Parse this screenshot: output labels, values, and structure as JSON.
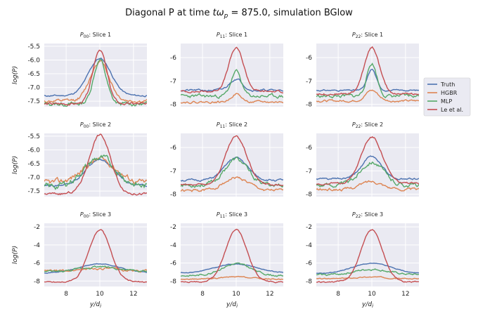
{
  "title": {
    "prefix": "Diagonal P at time ",
    "t": "t",
    "omega": "ω",
    "sub": "p",
    "value": " = 875.0, simulation BGlow"
  },
  "chart_data": {
    "type": "line",
    "xlabel": "y/d_i",
    "ylabel": "log(P)",
    "xlim": [
      6.7,
      12.8
    ],
    "xticks": [
      8,
      10,
      12
    ],
    "legend": {
      "position": "right",
      "entries": [
        {
          "name": "Truth",
          "color": "#4c72b0"
        },
        {
          "name": "HGBR",
          "color": "#dd8452"
        },
        {
          "name": "MLP",
          "color": "#55a868"
        },
        {
          "name": "Le et al.",
          "color": "#c44e52"
        }
      ]
    },
    "panels": [
      {
        "row": 0,
        "col": 0,
        "comp": "P",
        "sub": "00",
        "slice": "Slice 1",
        "ylim": [
          -7.7,
          -5.4
        ],
        "yticks": [
          "-5.5",
          "-6.0",
          "-6.5",
          "-7.0",
          "-7.5"
        ],
        "series": {
          "Truth": {
            "base": -7.3,
            "peak": -5.95,
            "width": 0.9,
            "noise": 0.02,
            "seed": 11
          },
          "HGBR": {
            "base": -7.5,
            "peak": -6.05,
            "width": 0.75,
            "noise": 0.04,
            "seed": 12
          },
          "MLP": {
            "base": -7.6,
            "peak": -6.0,
            "width": 0.5,
            "noise": 0.05,
            "seed": 13
          },
          "Le et al.": {
            "base": -7.6,
            "peak": -5.6,
            "width": 0.55,
            "noise": 0.03,
            "seed": 14
          }
        }
      },
      {
        "row": 0,
        "col": 1,
        "comp": "P",
        "sub": "11",
        "slice": "Slice 1",
        "ylim": [
          -8.1,
          -5.4
        ],
        "yticks": [
          "-6",
          "-7",
          "-8"
        ],
        "series": {
          "Truth": {
            "base": -7.4,
            "peak": -6.9,
            "width": 0.5,
            "noise": 0.03,
            "seed": 21
          },
          "HGBR": {
            "base": -7.9,
            "peak": -7.55,
            "width": 0.4,
            "noise": 0.03,
            "seed": 22
          },
          "MLP": {
            "base": -7.65,
            "peak": -6.6,
            "width": 0.4,
            "noise": 0.05,
            "seed": 23
          },
          "Le et al.": {
            "base": -7.45,
            "peak": -5.6,
            "width": 0.6,
            "noise": 0.03,
            "seed": 24
          }
        }
      },
      {
        "row": 0,
        "col": 2,
        "comp": "P",
        "sub": "22",
        "slice": "Slice 1",
        "ylim": [
          -8.1,
          -5.4
        ],
        "yticks": [
          "-6",
          "-7",
          "-8"
        ],
        "series": {
          "Truth": {
            "base": -7.4,
            "peak": -6.5,
            "width": 0.35,
            "noise": 0.02,
            "seed": 31
          },
          "HGBR": {
            "base": -7.85,
            "peak": -7.4,
            "width": 0.5,
            "noise": 0.03,
            "seed": 32
          },
          "MLP": {
            "base": -7.65,
            "peak": -6.25,
            "width": 0.4,
            "noise": 0.05,
            "seed": 33
          },
          "Le et al.": {
            "base": -7.55,
            "peak": -5.55,
            "width": 0.6,
            "noise": 0.03,
            "seed": 34
          }
        }
      },
      {
        "row": 1,
        "col": 0,
        "comp": "P",
        "sub": "00",
        "slice": "Slice 2",
        "ylim": [
          -7.7,
          -5.4
        ],
        "yticks": [
          "-5.5",
          "-6.0",
          "-6.5",
          "-7.0",
          "-7.5"
        ],
        "series": {
          "Truth": {
            "base": -7.3,
            "peak": -6.35,
            "width": 1.1,
            "noise": 0.03,
            "seed": 41
          },
          "HGBR": {
            "base": -7.2,
            "peak": -6.35,
            "width": 1.3,
            "noise": 0.07,
            "seed": 42
          },
          "MLP": {
            "base": -7.35,
            "peak": -6.3,
            "width": 1.3,
            "noise": 0.08,
            "seed": 43
          },
          "Le et al.": {
            "base": -7.6,
            "peak": -5.45,
            "width": 0.85,
            "noise": 0.03,
            "seed": 44
          }
        }
      },
      {
        "row": 1,
        "col": 1,
        "comp": "P",
        "sub": "11",
        "slice": "Slice 2",
        "ylim": [
          -8.1,
          -5.4
        ],
        "yticks": [
          "-6",
          "-7",
          "-8"
        ],
        "series": {
          "Truth": {
            "base": -7.4,
            "peak": -6.45,
            "width": 0.9,
            "noise": 0.03,
            "seed": 51
          },
          "HGBR": {
            "base": -7.85,
            "peak": -7.3,
            "width": 1.0,
            "noise": 0.04,
            "seed": 52
          },
          "MLP": {
            "base": -7.6,
            "peak": -6.5,
            "width": 0.9,
            "noise": 0.06,
            "seed": 53
          },
          "Le et al.": {
            "base": -7.6,
            "peak": -5.55,
            "width": 0.85,
            "noise": 0.03,
            "seed": 54
          }
        }
      },
      {
        "row": 1,
        "col": 2,
        "comp": "P",
        "sub": "22",
        "slice": "Slice 2",
        "ylim": [
          -8.1,
          -5.4
        ],
        "yticks": [
          "-6",
          "-7",
          "-8"
        ],
        "series": {
          "Truth": {
            "base": -7.35,
            "peak": -6.4,
            "width": 0.8,
            "noise": 0.03,
            "seed": 61
          },
          "HGBR": {
            "base": -7.8,
            "peak": -7.45,
            "width": 0.9,
            "noise": 0.04,
            "seed": 62
          },
          "MLP": {
            "base": -7.6,
            "peak": -6.6,
            "width": 0.9,
            "noise": 0.06,
            "seed": 63
          },
          "Le et al.": {
            "base": -7.55,
            "peak": -5.55,
            "width": 0.85,
            "noise": 0.03,
            "seed": 64
          }
        }
      },
      {
        "row": 2,
        "col": 0,
        "comp": "P",
        "sub": "00",
        "slice": "Slice 3",
        "ylim": [
          -8.6,
          -1.6
        ],
        "yticks": [
          "-2",
          "-4",
          "-6",
          "-8"
        ],
        "series": {
          "Truth": {
            "base": -7.1,
            "peak": -6.1,
            "width": 1.6,
            "noise": 0.03,
            "seed": 71
          },
          "HGBR": {
            "base": -6.9,
            "peak": -6.6,
            "width": 1.5,
            "noise": 0.08,
            "seed": 72
          },
          "MLP": {
            "base": -7.0,
            "peak": -6.4,
            "width": 1.5,
            "noise": 0.08,
            "seed": 73
          },
          "Le et al.": {
            "base": -8.1,
            "peak": -2.3,
            "width": 0.85,
            "noise": 0.05,
            "seed": 74
          }
        }
      },
      {
        "row": 2,
        "col": 1,
        "comp": "P",
        "sub": "11",
        "slice": "Slice 3",
        "ylim": [
          -8.6,
          -1.6
        ],
        "yticks": [
          "-2",
          "-4",
          "-6",
          "-8"
        ],
        "series": {
          "Truth": {
            "base": -7.1,
            "peak": -6.1,
            "width": 1.6,
            "noise": 0.03,
            "seed": 81
          },
          "HGBR": {
            "base": -7.8,
            "peak": -7.55,
            "width": 1.3,
            "noise": 0.04,
            "seed": 82
          },
          "MLP": {
            "base": -7.4,
            "peak": -6.1,
            "width": 1.2,
            "noise": 0.07,
            "seed": 83
          },
          "Le et al.": {
            "base": -8.1,
            "peak": -2.3,
            "width": 0.85,
            "noise": 0.05,
            "seed": 84
          }
        }
      },
      {
        "row": 2,
        "col": 2,
        "comp": "P",
        "sub": "22",
        "slice": "Slice 3",
        "ylim": [
          -8.6,
          -1.6
        ],
        "yticks": [
          "-2",
          "-4",
          "-6",
          "-8"
        ],
        "series": {
          "Truth": {
            "base": -7.2,
            "peak": -6.05,
            "width": 1.6,
            "noise": 0.03,
            "seed": 91
          },
          "HGBR": {
            "base": -7.75,
            "peak": -7.55,
            "width": 1.3,
            "noise": 0.04,
            "seed": 92
          },
          "MLP": {
            "base": -7.3,
            "peak": -6.7,
            "width": 1.3,
            "noise": 0.07,
            "seed": 93
          },
          "Le et al.": {
            "base": -8.1,
            "peak": -2.3,
            "width": 0.85,
            "noise": 0.05,
            "seed": 94
          }
        }
      }
    ]
  }
}
